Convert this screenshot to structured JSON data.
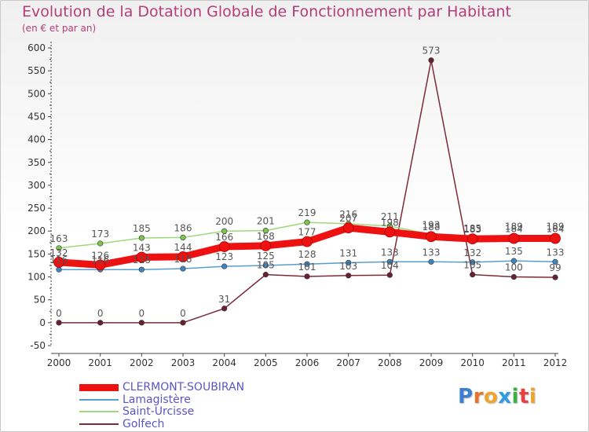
{
  "title": "Evolution de la Dotation Globale de Fonctionnement par Habitant",
  "subtitle": "(en € et par an)",
  "brand": {
    "letters": [
      "P",
      "r",
      "o",
      "x",
      "i",
      "t",
      "i"
    ],
    "colors": [
      "#3a7fd0",
      "#e8732a",
      "#f0a430",
      "#2f9be0",
      "#3ab040",
      "#e84040",
      "#f0a430"
    ]
  },
  "colors": {
    "axis": "#444444",
    "grid": "#d8d8d8",
    "tick_label": "#333333",
    "value_label": "#555555"
  },
  "chart_data": {
    "type": "line",
    "title": "Evolution de la Dotation Globale de Fonctionnement par Habitant",
    "subtitle": "(en € et par an)",
    "xlabel": "",
    "ylabel": "",
    "ylim": [
      -50,
      600
    ],
    "yticks": [
      -50,
      0,
      50,
      100,
      150,
      200,
      250,
      300,
      350,
      400,
      450,
      500,
      550,
      600
    ],
    "grid": false,
    "legend": "bottom-left",
    "x": [
      "2000",
      "2001",
      "2002",
      "2003",
      "2004",
      "2005",
      "2006",
      "2007",
      "2008",
      "2009",
      "2010",
      "2011",
      "2012"
    ],
    "series": [
      {
        "name": "Golfech",
        "color": "#7b2a3a",
        "marker": "#6a2030",
        "emphasis": false,
        "values": [
          0,
          0,
          0,
          0,
          31,
          105,
          101,
          103,
          104,
          573,
          105,
          100,
          99
        ]
      },
      {
        "name": "Lamagistère",
        "color": "#5a9ccc",
        "marker": "#3f86bf",
        "emphasis": false,
        "values": [
          116,
          116,
          116,
          118,
          123,
          125,
          128,
          131,
          133,
          133,
          132,
          135,
          133
        ]
      },
      {
        "name": "Saint-Urcisse",
        "color": "#9ed87c",
        "marker": "#7cc64e",
        "emphasis": false,
        "values": [
          163,
          173,
          185,
          186,
          200,
          201,
          219,
          216,
          211,
          193,
          185,
          189,
          189
        ]
      },
      {
        "name": "CLERMONT-SOUBIRAN",
        "color": "#ee1111",
        "marker": "#ee1111",
        "emphasis": true,
        "values": [
          132,
          126,
          143,
          144,
          166,
          168,
          177,
          207,
          198,
          188,
          183,
          184,
          184
        ]
      }
    ],
    "legend_order": [
      "CLERMONT-SOUBIRAN",
      "Lamagistère",
      "Saint-Urcisse",
      "Golfech"
    ]
  }
}
